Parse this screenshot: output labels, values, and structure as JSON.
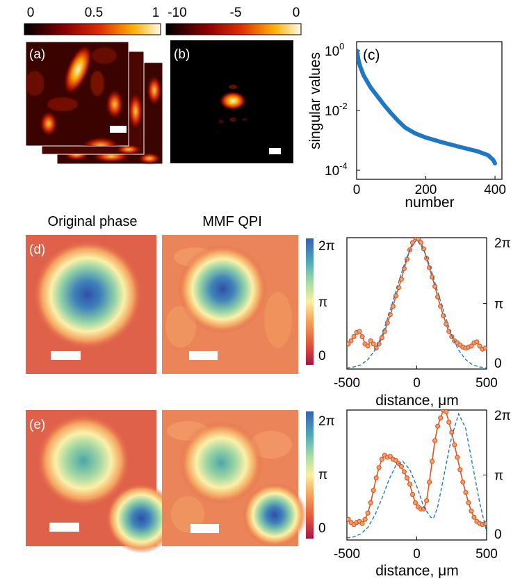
{
  "colorbars": {
    "a": {
      "ticks": [
        "0",
        "0.5",
        "1"
      ]
    },
    "b": {
      "ticks": [
        "-10",
        "-5",
        "0"
      ]
    },
    "phase": {
      "ticks": [
        "2π",
        "π",
        "0"
      ]
    }
  },
  "panels": {
    "a": {
      "label": "(a)"
    },
    "b": {
      "label": "(b)"
    },
    "c": {
      "label": "(c)"
    },
    "d": {
      "label": "(d)"
    },
    "e": {
      "label": "(e)"
    }
  },
  "columns": {
    "original": "Original phase",
    "mmf": "MMF QPI"
  },
  "chart_data": [
    {
      "id": "c",
      "type": "line",
      "title": "",
      "xlabel": "number",
      "ylabel": "singular values",
      "xlim": [
        0,
        420
      ],
      "ylim": [
        5e-05,
        2
      ],
      "yscale": "log",
      "xticks": [
        "0",
        "200",
        "400"
      ],
      "yticks": [
        {
          "base": "10",
          "exp": "0",
          "value": 1
        },
        {
          "base": "10",
          "exp": "-2",
          "value": 0.01
        },
        {
          "base": "10",
          "exp": "-4",
          "value": 0.0001
        }
      ],
      "series": [
        {
          "name": "singular values",
          "color": "#1f77c4",
          "x": [
            1,
            5,
            10,
            20,
            40,
            60,
            80,
            100,
            120,
            140,
            170,
            200,
            250,
            300,
            350,
            380,
            395,
            400
          ],
          "y": [
            1.0,
            0.5,
            0.3,
            0.15,
            0.06,
            0.03,
            0.015,
            0.008,
            0.0045,
            0.0027,
            0.0017,
            0.00125,
            0.00085,
            0.0006,
            0.00043,
            0.00032,
            0.00022,
            0.00017
          ]
        }
      ]
    },
    {
      "id": "d",
      "type": "line",
      "xlabel": "distance, μm",
      "ylabel": "",
      "xlim": [
        -500,
        500
      ],
      "ylim": [
        0,
        6.2832
      ],
      "xticks": [
        "-500",
        "0",
        "500"
      ],
      "yticks_right": [
        "2π",
        "π",
        "0"
      ],
      "series": [
        {
          "name": "MMF QPI",
          "color": "#d9541f",
          "marker": "circle",
          "x": [
            -490,
            -470,
            -450,
            -430,
            -410,
            -390,
            -370,
            -350,
            -330,
            -310,
            -290,
            -270,
            -250,
            -230,
            -210,
            -190,
            -170,
            -150,
            -130,
            -110,
            -90,
            -70,
            -50,
            -30,
            -10,
            10,
            30,
            50,
            70,
            90,
            110,
            130,
            150,
            170,
            190,
            210,
            230,
            250,
            270,
            290,
            310,
            330,
            350,
            370,
            390,
            410,
            430,
            450,
            470,
            490
          ],
          "y": [
            1.2,
            1.35,
            1.55,
            1.75,
            1.8,
            1.55,
            1.2,
            1.1,
            1.35,
            1.2,
            1.0,
            1.2,
            1.5,
            1.8,
            2.2,
            2.6,
            3.0,
            3.5,
            3.9,
            4.3,
            4.8,
            5.25,
            5.7,
            6.05,
            6.28,
            6.22,
            6.05,
            5.75,
            5.3,
            4.85,
            4.4,
            3.95,
            3.45,
            3.0,
            2.55,
            2.15,
            1.8,
            1.55,
            1.35,
            1.25,
            1.15,
            1.05,
            1.0,
            1.05,
            1.1,
            1.25,
            1.3,
            1.1,
            0.95,
            1.0
          ]
        },
        {
          "name": "Original phase",
          "color": "#1f77c4",
          "dash": true,
          "x": [
            -500,
            -450,
            -400,
            -350,
            -300,
            -250,
            -200,
            -150,
            -100,
            -50,
            0,
            50,
            100,
            150,
            200,
            250,
            300,
            350,
            400,
            450,
            500
          ],
          "y": [
            0.05,
            0.1,
            0.2,
            0.45,
            0.9,
            1.6,
            2.6,
            3.7,
            4.8,
            5.7,
            6.2,
            5.7,
            4.8,
            3.7,
            2.6,
            1.6,
            0.9,
            0.45,
            0.2,
            0.1,
            0.05
          ]
        }
      ]
    },
    {
      "id": "e",
      "type": "line",
      "xlabel": "distance, μm",
      "ylabel": "",
      "xlim": [
        -500,
        500
      ],
      "ylim": [
        0,
        6.2832
      ],
      "xticks": [
        "-500",
        "0",
        "500"
      ],
      "yticks_right": [
        "2π",
        "π",
        "0"
      ],
      "series": [
        {
          "name": "MMF QPI",
          "color": "#d9541f",
          "marker": "circle",
          "x": [
            -490,
            -470,
            -450,
            -430,
            -410,
            -390,
            -370,
            -350,
            -330,
            -310,
            -290,
            -270,
            -250,
            -230,
            -210,
            -190,
            -170,
            -150,
            -130,
            -110,
            -90,
            -70,
            -50,
            -30,
            -10,
            10,
            30,
            50,
            70,
            90,
            110,
            130,
            150,
            170,
            190,
            210,
            230,
            250,
            270,
            290,
            310,
            330,
            350,
            370,
            390,
            410,
            430,
            450,
            470,
            490
          ],
          "y": [
            1.0,
            0.85,
            0.75,
            0.85,
            0.9,
            0.8,
            1.0,
            1.3,
            1.8,
            2.4,
            3.0,
            3.5,
            3.9,
            4.1,
            4.0,
            4.05,
            3.9,
            3.85,
            3.7,
            3.55,
            3.3,
            3.0,
            2.7,
            2.2,
            1.8,
            1.6,
            1.5,
            1.5,
            1.9,
            2.8,
            3.8,
            4.8,
            5.5,
            5.9,
            6.28,
            6.2,
            5.7,
            5.2,
            4.6,
            4.0,
            3.4,
            2.8,
            2.3,
            1.8,
            1.4,
            1.1,
            0.9,
            0.8,
            0.75,
            0.8
          ]
        },
        {
          "name": "Original phase",
          "color": "#1f77c4",
          "dash": true,
          "x": [
            -500,
            -450,
            -400,
            -350,
            -300,
            -250,
            -200,
            -150,
            -100,
            -50,
            0,
            50,
            100,
            120,
            150,
            200,
            250,
            300,
            350,
            400,
            450,
            500
          ],
          "y": [
            0.1,
            0.15,
            0.3,
            0.6,
            1.2,
            2.0,
            2.9,
            3.6,
            3.8,
            3.4,
            2.6,
            1.6,
            1.1,
            1.05,
            1.6,
            3.3,
            5.0,
            6.1,
            5.4,
            3.6,
            1.8,
            0.4
          ]
        }
      ]
    }
  ]
}
